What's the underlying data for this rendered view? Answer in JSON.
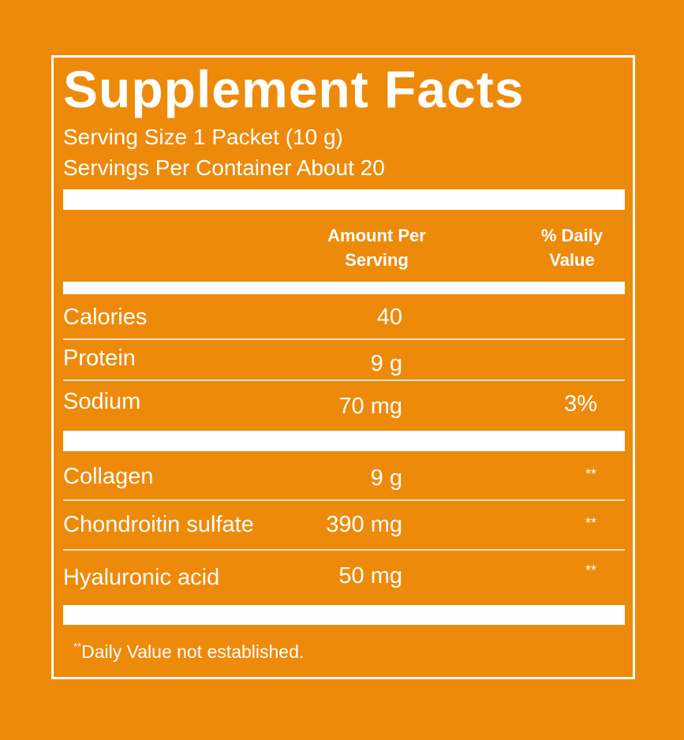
{
  "title": "Supplement Facts",
  "serving_size": "Serving Size 1 Packet (10 g)",
  "servings_per_container": "Servings Per Container About 20",
  "columns": {
    "amount": [
      "Amount Per",
      "Serving"
    ],
    "daily_value": [
      "% Daily",
      "Value"
    ]
  },
  "rows": [
    {
      "name": "Calories",
      "amount": "40",
      "dv": ""
    },
    {
      "name": "Protein",
      "amount": "9 g",
      "dv": ""
    },
    {
      "name": "Sodium",
      "amount": "70 mg",
      "dv": "3%"
    },
    {
      "name": "Collagen",
      "amount": "9 g",
      "dv": "**"
    },
    {
      "name": "Chondroitin sulfate",
      "amount": "390 mg",
      "dv": "**"
    },
    {
      "name": "Hyaluronic acid",
      "amount": "50 mg",
      "dv": "**"
    }
  ],
  "footnote": {
    "marker": "**",
    "text": "Daily Value not established."
  },
  "colors": {
    "background": "#EE8A0A",
    "foreground": "#FFFFFF"
  }
}
